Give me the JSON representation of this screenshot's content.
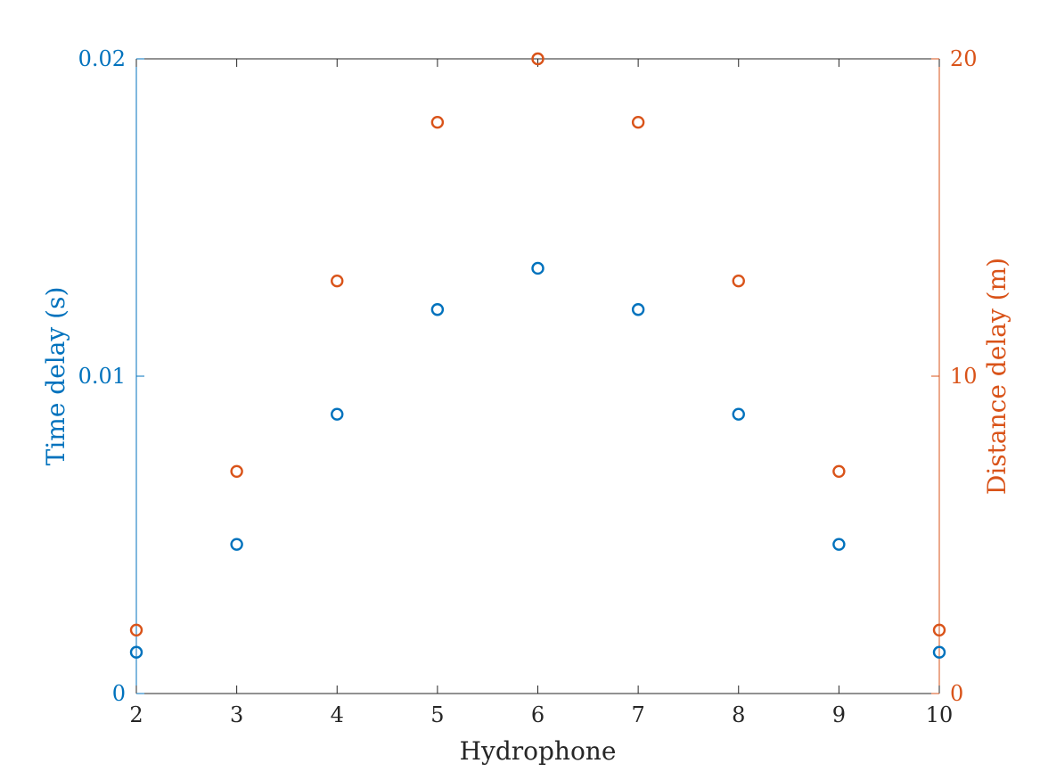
{
  "chart_data": {
    "type": "scatter",
    "title": "",
    "xlabel": "Hydrophone",
    "ylabel_left": "Time delay (s)",
    "ylabel_right": "Distance delay (m)",
    "xlim": [
      2,
      10
    ],
    "ylim_left": [
      0,
      0.02
    ],
    "ylim_right": [
      0,
      20
    ],
    "x_ticks": [
      2,
      3,
      4,
      5,
      6,
      7,
      8,
      9,
      10
    ],
    "y_ticks_left": [
      0,
      0.01,
      0.02
    ],
    "y_ticks_left_labels": [
      "0",
      "0.01",
      "0.02"
    ],
    "y_ticks_right": [
      0,
      10,
      20
    ],
    "y_ticks_right_labels": [
      "0",
      "10",
      "20"
    ],
    "grid": false,
    "colors": {
      "left": "#0072BD",
      "right": "#D95319",
      "axis": "#262626"
    },
    "series": [
      {
        "axis": "left",
        "x": [
          2,
          3,
          4,
          5,
          6,
          7,
          8,
          9,
          10
        ],
        "y": [
          0.0013,
          0.0047,
          0.0088,
          0.0121,
          0.0134,
          0.0121,
          0.0088,
          0.0047,
          0.0013
        ]
      },
      {
        "axis": "right",
        "x": [
          2,
          3,
          4,
          5,
          6,
          7,
          8,
          9,
          10
        ],
        "y": [
          2,
          7,
          13,
          18,
          20,
          18,
          13,
          7,
          2
        ]
      }
    ]
  }
}
